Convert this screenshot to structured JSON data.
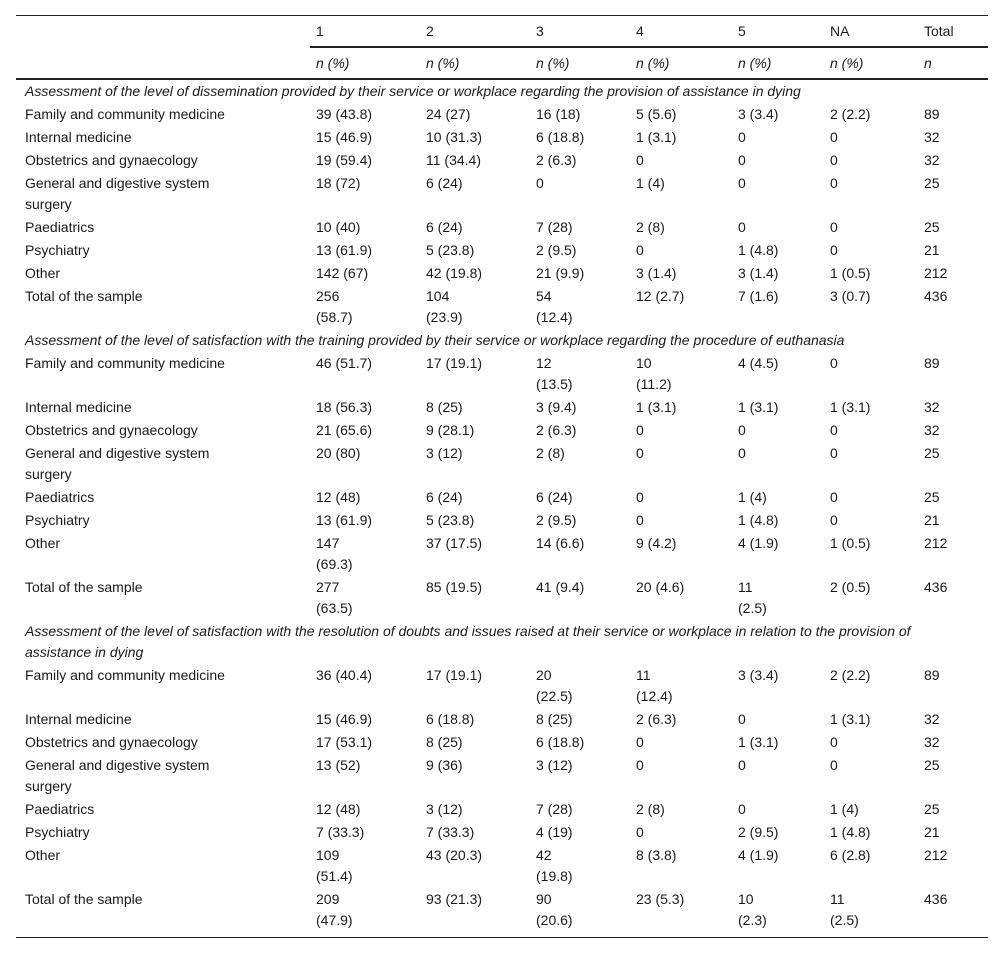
{
  "header": {
    "columns": [
      "1",
      "2",
      "3",
      "4",
      "5",
      "NA",
      "Total"
    ],
    "subheaders": [
      "n (%)",
      "n (%)",
      "n (%)",
      "n (%)",
      "n (%)",
      "n (%)",
      "n"
    ]
  },
  "sections": [
    {
      "title": "Assessment of the level of dissemination provided by their service or workplace regarding the provision of assistance in dying",
      "rows": [
        {
          "label": "Family and community medicine",
          "values": [
            "39 (43.8)",
            "24 (27)",
            "16 (18)",
            "5 (5.6)",
            "3 (3.4)",
            "2 (2.2)",
            "89"
          ]
        },
        {
          "label": "Internal medicine",
          "values": [
            "15 (46.9)",
            "10 (31.3)",
            "6 (18.8)",
            "1 (3.1)",
            "0",
            "0",
            "32"
          ]
        },
        {
          "label": "Obstetrics and gynaecology",
          "values": [
            "19 (59.4)",
            "11 (34.4)",
            "2 (6.3)",
            "0",
            "0",
            "0",
            "32"
          ]
        },
        {
          "label": "General and digestive system surgery",
          "values": [
            "18 (72)",
            "6 (24)",
            "0",
            "1 (4)",
            "0",
            "0",
            "25"
          ]
        },
        {
          "label": "Paediatrics",
          "values": [
            "10 (40)",
            "6 (24)",
            "7 (28)",
            "2 (8)",
            "0",
            "0",
            "25"
          ]
        },
        {
          "label": "Psychiatry",
          "values": [
            "13 (61.9)",
            "5 (23.8)",
            "2 (9.5)",
            "0",
            "1 (4.8)",
            "0",
            "21"
          ]
        },
        {
          "label": "Other",
          "values": [
            "142 (67)",
            "42 (19.8)",
            "21 (9.9)",
            "3 (1.4)",
            "3 (1.4)",
            "1 (0.5)",
            "212"
          ]
        },
        {
          "label": "Total of the sample",
          "values": [
            "256 (58.7)",
            "104 (23.9)",
            "54 (12.4)",
            "12 (2.7)",
            "7 (1.6)",
            "3 (0.7)",
            "436"
          ]
        }
      ]
    },
    {
      "title": "Assessment of the level of satisfaction with the training provided by their service or workplace regarding the procedure of euthanasia",
      "rows": [
        {
          "label": "Family and community medicine",
          "values": [
            "46 (51.7)",
            "17 (19.1)",
            "12 (13.5)",
            "10 (11.2)",
            "4 (4.5)",
            "0",
            "89"
          ]
        },
        {
          "label": "Internal medicine",
          "values": [
            "18 (56.3)",
            "8 (25)",
            "3 (9.4)",
            "1 (3.1)",
            "1 (3.1)",
            "1 (3.1)",
            "32"
          ]
        },
        {
          "label": "Obstetrics and gynaecology",
          "values": [
            "21 (65.6)",
            "9 (28.1)",
            "2 (6.3)",
            "0",
            "0",
            "0",
            "32"
          ]
        },
        {
          "label": "General and digestive system surgery",
          "values": [
            "20 (80)",
            "3 (12)",
            "2 (8)",
            "0",
            "0",
            "0",
            "25"
          ]
        },
        {
          "label": "Paediatrics",
          "values": [
            "12 (48)",
            "6 (24)",
            "6 (24)",
            "0",
            "1 (4)",
            "0",
            "25"
          ]
        },
        {
          "label": "Psychiatry",
          "values": [
            "13 (61.9)",
            "5 (23.8)",
            "2 (9.5)",
            "0",
            "1 (4.8)",
            "0",
            "21"
          ]
        },
        {
          "label": "Other",
          "values": [
            "147 (69.3)",
            "37 (17.5)",
            "14 (6.6)",
            "9 (4.2)",
            "4 (1.9)",
            "1 (0.5)",
            "212"
          ]
        },
        {
          "label": "Total of the sample",
          "values": [
            "277 (63.5)",
            "85 (19.5)",
            "41 (9.4)",
            "20 (4.6)",
            "11 (2.5)",
            "2 (0.5)",
            "436"
          ]
        }
      ]
    },
    {
      "title": "Assessment of the level of satisfaction with the resolution of doubts and issues raised at their service or workplace in relation to the provision of assistance in dying",
      "rows": [
        {
          "label": "Family and community medicine",
          "values": [
            "36 (40.4)",
            "17 (19.1)",
            "20 (22.5)",
            "11 (12.4)",
            "3 (3.4)",
            "2 (2.2)",
            "89"
          ]
        },
        {
          "label": "Internal medicine",
          "values": [
            "15 (46.9)",
            "6 (18.8)",
            "8 (25)",
            "2 (6.3)",
            "0",
            "1 (3.1)",
            "32"
          ]
        },
        {
          "label": "Obstetrics and gynaecology",
          "values": [
            "17 (53.1)",
            "8 (25)",
            "6 (18.8)",
            "0",
            "1 (3.1)",
            "0",
            "32"
          ]
        },
        {
          "label": "General and digestive system surgery",
          "values": [
            "13 (52)",
            "9 (36)",
            "3 (12)",
            "0",
            "0",
            "0",
            "25"
          ]
        },
        {
          "label": "Paediatrics",
          "values": [
            "12 (48)",
            "3 (12)",
            "7 (28)",
            "2 (8)",
            "0",
            "1 (4)",
            "25"
          ]
        },
        {
          "label": "Psychiatry",
          "values": [
            "7 (33.3)",
            "7 (33.3)",
            "4 (19)",
            "0",
            "2 (9.5)",
            "1 (4.8)",
            "21"
          ]
        },
        {
          "label": "Other",
          "values": [
            "109 (51.4)",
            "43 (20.3)",
            "42 (19.8)",
            "8 (3.8)",
            "4 (1.9)",
            "6 (2.8)",
            "212"
          ]
        },
        {
          "label": "Total of the sample",
          "values": [
            "209 (47.9)",
            "93 (21.3)",
            "90 (20.6)",
            "23 (5.3)",
            "10 (2.3)",
            "11 (2.5)",
            "436"
          ]
        }
      ]
    }
  ]
}
